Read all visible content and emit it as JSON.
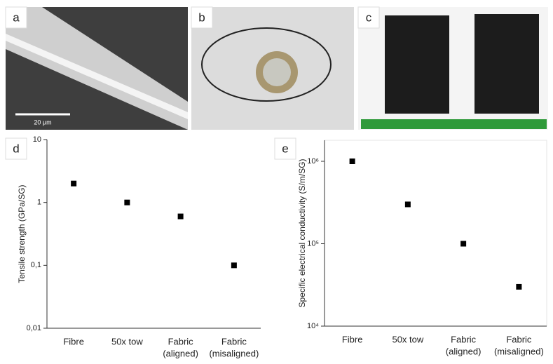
{
  "panels": {
    "labels": [
      "a",
      "b",
      "c",
      "d",
      "e"
    ],
    "scale_bar": "20 µm"
  },
  "chart_data": [
    {
      "type": "scatter",
      "y_label": "Tensile strength (GPa/SG)",
      "categories": [
        [
          "Fibre"
        ],
        [
          "50x tow"
        ],
        [
          "Fabric",
          "(aligned)"
        ],
        [
          "Fabric",
          "(misaligned)"
        ]
      ],
      "values": [
        2,
        1,
        0.6,
        0.1
      ],
      "color": "#000000",
      "log_y": true,
      "ylim": [
        0.01,
        10
      ],
      "yticks": [
        {
          "value": 0.01,
          "label": "0,01"
        },
        {
          "value": 0.1,
          "label": "0,1"
        },
        1,
        10
      ]
    },
    {
      "type": "scatter",
      "y_label": "Specific electrical conductivity (S/m/SG)",
      "categories": [
        [
          "Fibre"
        ],
        [
          "50x tow"
        ],
        [
          "Fabric",
          "(aligned)"
        ],
        [
          "Fabric",
          "(misaligned)"
        ]
      ],
      "values": [
        1000000,
        300000,
        100000,
        30000
      ],
      "color": "#000000",
      "log_y": true,
      "ylim": [
        10000,
        1800000
      ],
      "yticks": [
        {
          "value": 10000,
          "label": "10⁴"
        },
        {
          "value": 100000,
          "label": "10⁵"
        },
        {
          "value": 1000000,
          "label": "10⁶"
        }
      ]
    }
  ]
}
